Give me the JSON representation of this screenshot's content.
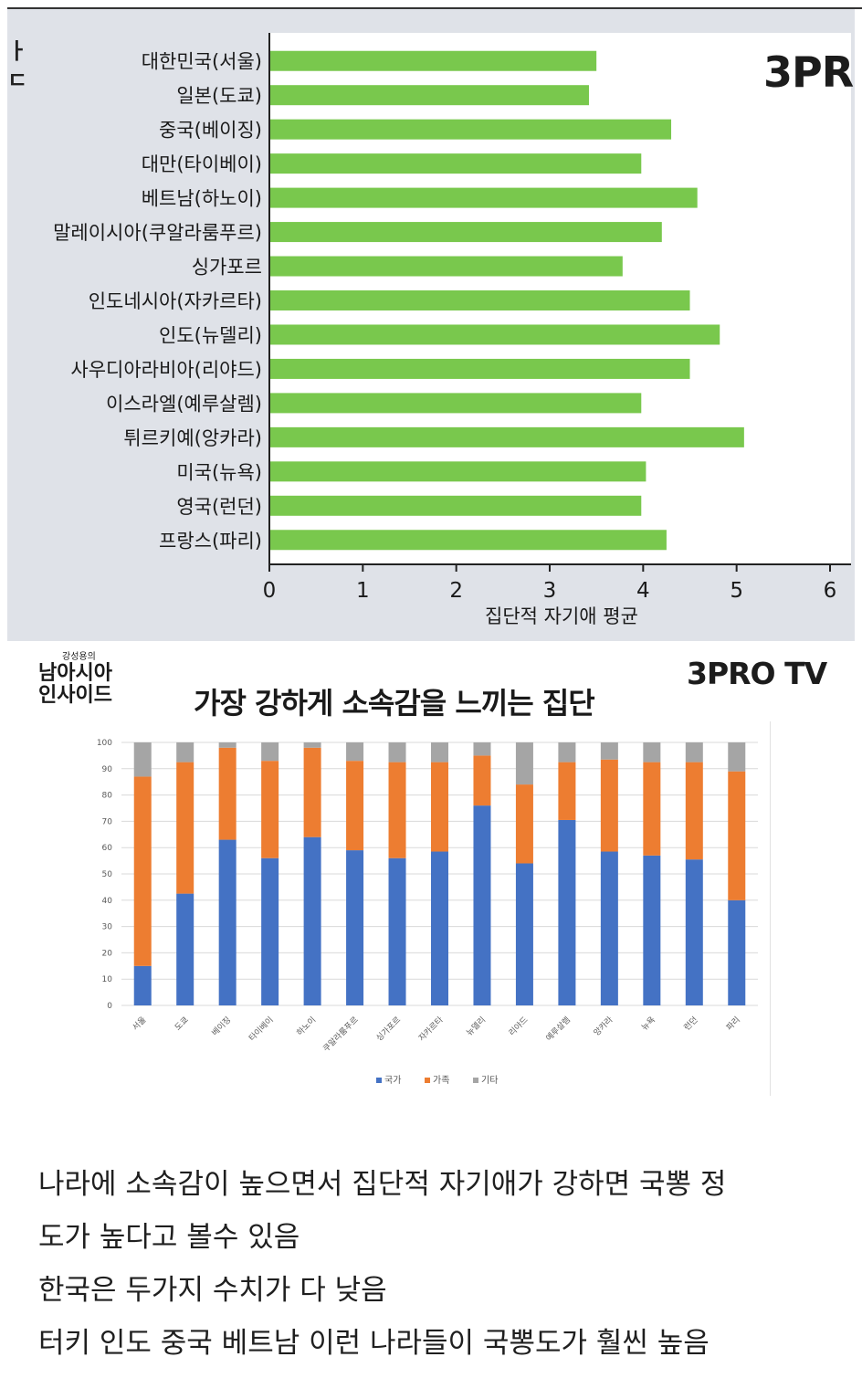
{
  "chart_data": [
    {
      "type": "bar",
      "orientation": "horizontal",
      "categories": [
        "대한민국(서울)",
        "일본(도쿄)",
        "중국(베이징)",
        "대만(타이베이)",
        "베트남(하노이)",
        "말레이시아(쿠알라룸푸르)",
        "싱가포르",
        "인도네시아(자카르타)",
        "인도(뉴델리)",
        "사우디아라비아(리야드)",
        "이스라엘(예루살렘)",
        "튀르키예(앙카라)",
        "미국(뉴욕)",
        "영국(런던)",
        "프랑스(파리)"
      ],
      "values": [
        3.5,
        3.42,
        4.3,
        3.98,
        4.58,
        4.2,
        3.78,
        4.5,
        4.82,
        4.5,
        3.98,
        5.08,
        4.03,
        3.98,
        4.25
      ],
      "title": "",
      "xlabel": "집단적 자기애 평균",
      "ylabel": "",
      "xlim": [
        0,
        6
      ],
      "xticks": [
        "0",
        "1",
        "2",
        "3",
        "4",
        "5",
        "6"
      ],
      "color": "#79c84d",
      "grid": false
    },
    {
      "type": "bar",
      "stacked": true,
      "title": "가장 강하게 소속감을 느끼는 집단",
      "categories": [
        "서울",
        "도쿄",
        "베이징",
        "타이베이",
        "하노이",
        "쿠알라룸푸르",
        "싱가포르",
        "자카르타",
        "뉴델리",
        "리야드",
        "예루살렘",
        "앙카라",
        "뉴욕",
        "런던",
        "파리"
      ],
      "series": [
        {
          "name": "국가",
          "color": "#4472c4",
          "values": [
            15,
            42.5,
            63,
            56,
            64,
            59,
            56,
            58.5,
            76,
            54,
            70.5,
            58.5,
            57,
            55.5,
            40
          ]
        },
        {
          "name": "가족",
          "color": "#ed7d31",
          "values": [
            72,
            50,
            35,
            37,
            34,
            34,
            36.5,
            34,
            19,
            30,
            22,
            35,
            35.5,
            37,
            49
          ]
        },
        {
          "name": "기타",
          "color": "#a5a5a5",
          "values": [
            13,
            7.5,
            2,
            7,
            2,
            7,
            7.5,
            7.5,
            5,
            16,
            7.5,
            6.5,
            7.5,
            7.5,
            11
          ]
        }
      ],
      "ylim": [
        0,
        100
      ],
      "yticks": [
        "0",
        "10",
        "20",
        "30",
        "40",
        "50",
        "60",
        "70",
        "80",
        "90",
        "100"
      ],
      "grid": true,
      "legend": "bottom"
    }
  ],
  "branding": {
    "top_logo": "3PR",
    "bottom_logo": "3PRO TV",
    "show_small": "강성용의",
    "show_line1": "남아시아",
    "show_line2": "인사이드",
    "side_fragment": "ㅏ\nㄷ"
  },
  "caption": {
    "line1": "나라에 소속감이 높으면서 집단적 자기애가 강하면 국뽕 정",
    "line2": "도가 높다고 볼수 있음",
    "line3": "한국은 두가지 수치가 다 낮음",
    "line4": "터키 인도 중국 베트남 이런 나라들이 국뽕도가 훨씬 높음"
  }
}
